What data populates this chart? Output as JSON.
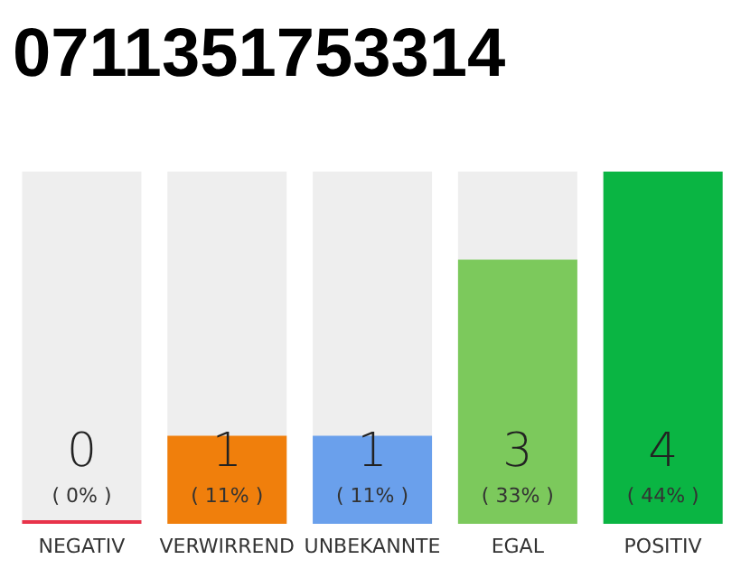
{
  "chart_data": {
    "type": "bar",
    "title": "0711351753314",
    "categories": [
      "NEGATIV",
      "VERWIRREND",
      "UNBEKANNTE",
      "EGAL",
      "POSITIV"
    ],
    "values": [
      0,
      1,
      1,
      3,
      4
    ],
    "colors": [
      "#e8334a",
      "#f07f0c",
      "#6aa0ec",
      "#7cc95c",
      "#0ab543"
    ],
    "tick_labels": "x",
    "value_labels": [
      "0",
      "1",
      "1",
      "3",
      "4"
    ],
    "annotations": [
      "( 0% )",
      "( 11% )",
      "( 11% )",
      "( 33% )",
      "( 44% )"
    ]
  }
}
